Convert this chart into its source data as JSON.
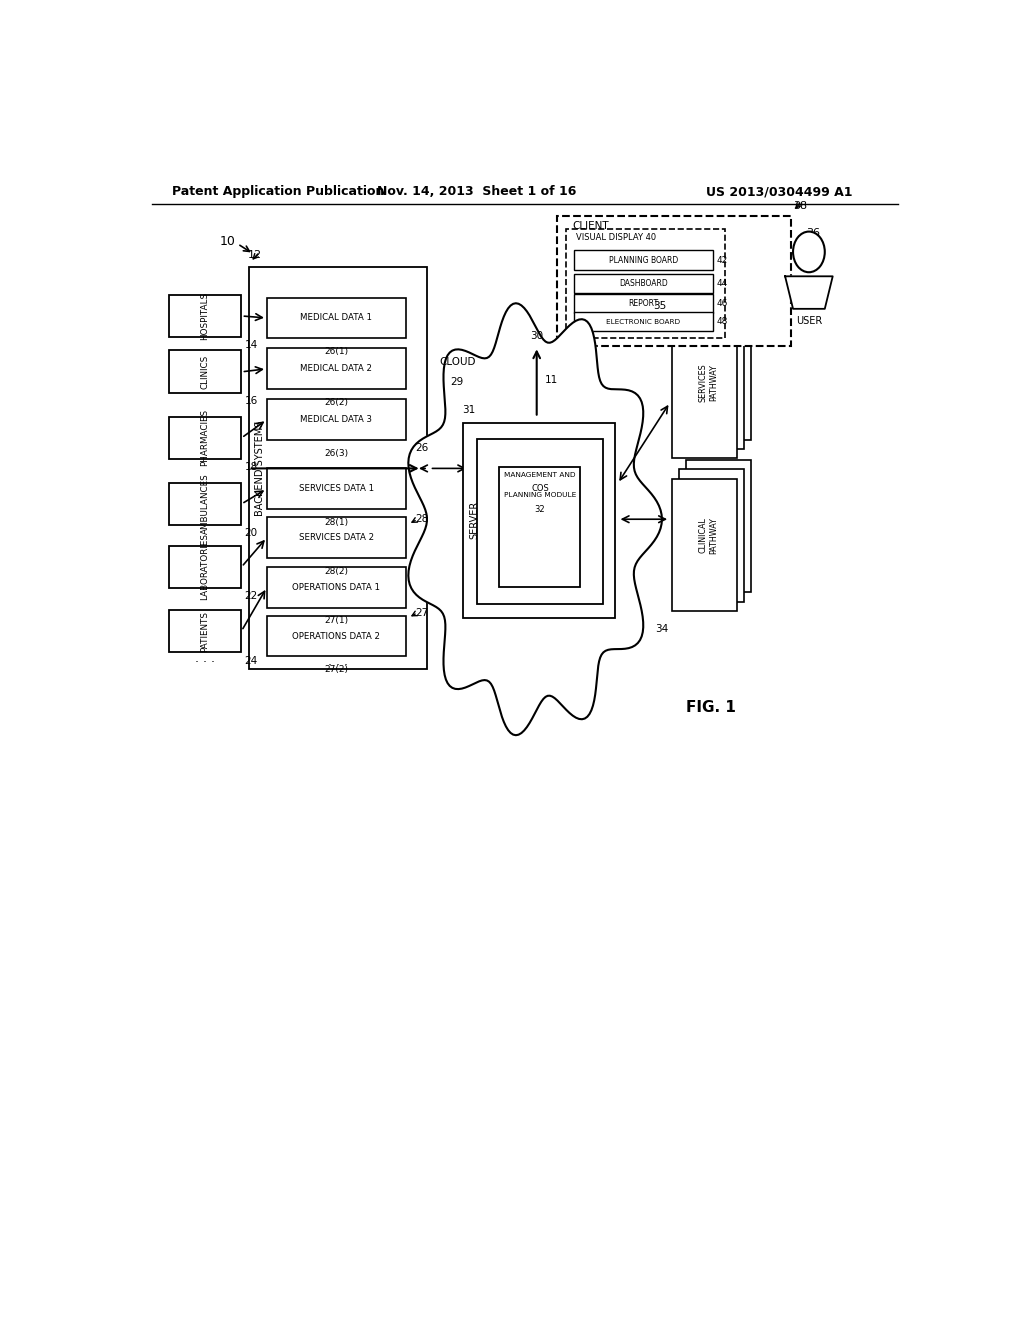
{
  "header_left": "Patent Application Publication",
  "header_mid": "Nov. 14, 2013  Sheet 1 of 16",
  "header_right": "US 2013/0304499 A1",
  "fig_label": "FIG. 1",
  "bg_color": "#ffffff",
  "left_entities": [
    [
      "HOSPITALS",
      "14",
      0.845
    ],
    [
      "CLINICS",
      "16",
      0.79
    ],
    [
      "PHARMACIES",
      "18",
      0.725
    ],
    [
      "AMBULANCES",
      "20",
      0.66
    ],
    [
      "LABORATORIES",
      "22",
      0.598
    ],
    [
      "PATIENTS",
      "24",
      0.535
    ]
  ],
  "med_data": [
    [
      "MEDICAL DATA 1",
      "26(1)",
      0.843
    ],
    [
      "MEDICAL DATA 2",
      "26(2)",
      0.793
    ],
    [
      "MEDICAL DATA 3",
      "26(3)",
      0.743
    ]
  ],
  "svc_data": [
    [
      "SERVICES DATA 1",
      "28(1)",
      0.675
    ],
    [
      "SERVICES DATA 2",
      "28(2)",
      0.627
    ]
  ],
  "ops_data": [
    [
      "OPERATIONS DATA 1",
      "27(1)",
      0.578
    ],
    [
      "OPERATIONS DATA 2",
      "27(2)",
      0.53
    ]
  ],
  "vd_items": [
    [
      "PLANNING BOARD",
      "42",
      0.9
    ],
    [
      "DASHBOARD",
      "44",
      0.877
    ],
    [
      "REPORT",
      "46",
      0.857
    ]
  ]
}
